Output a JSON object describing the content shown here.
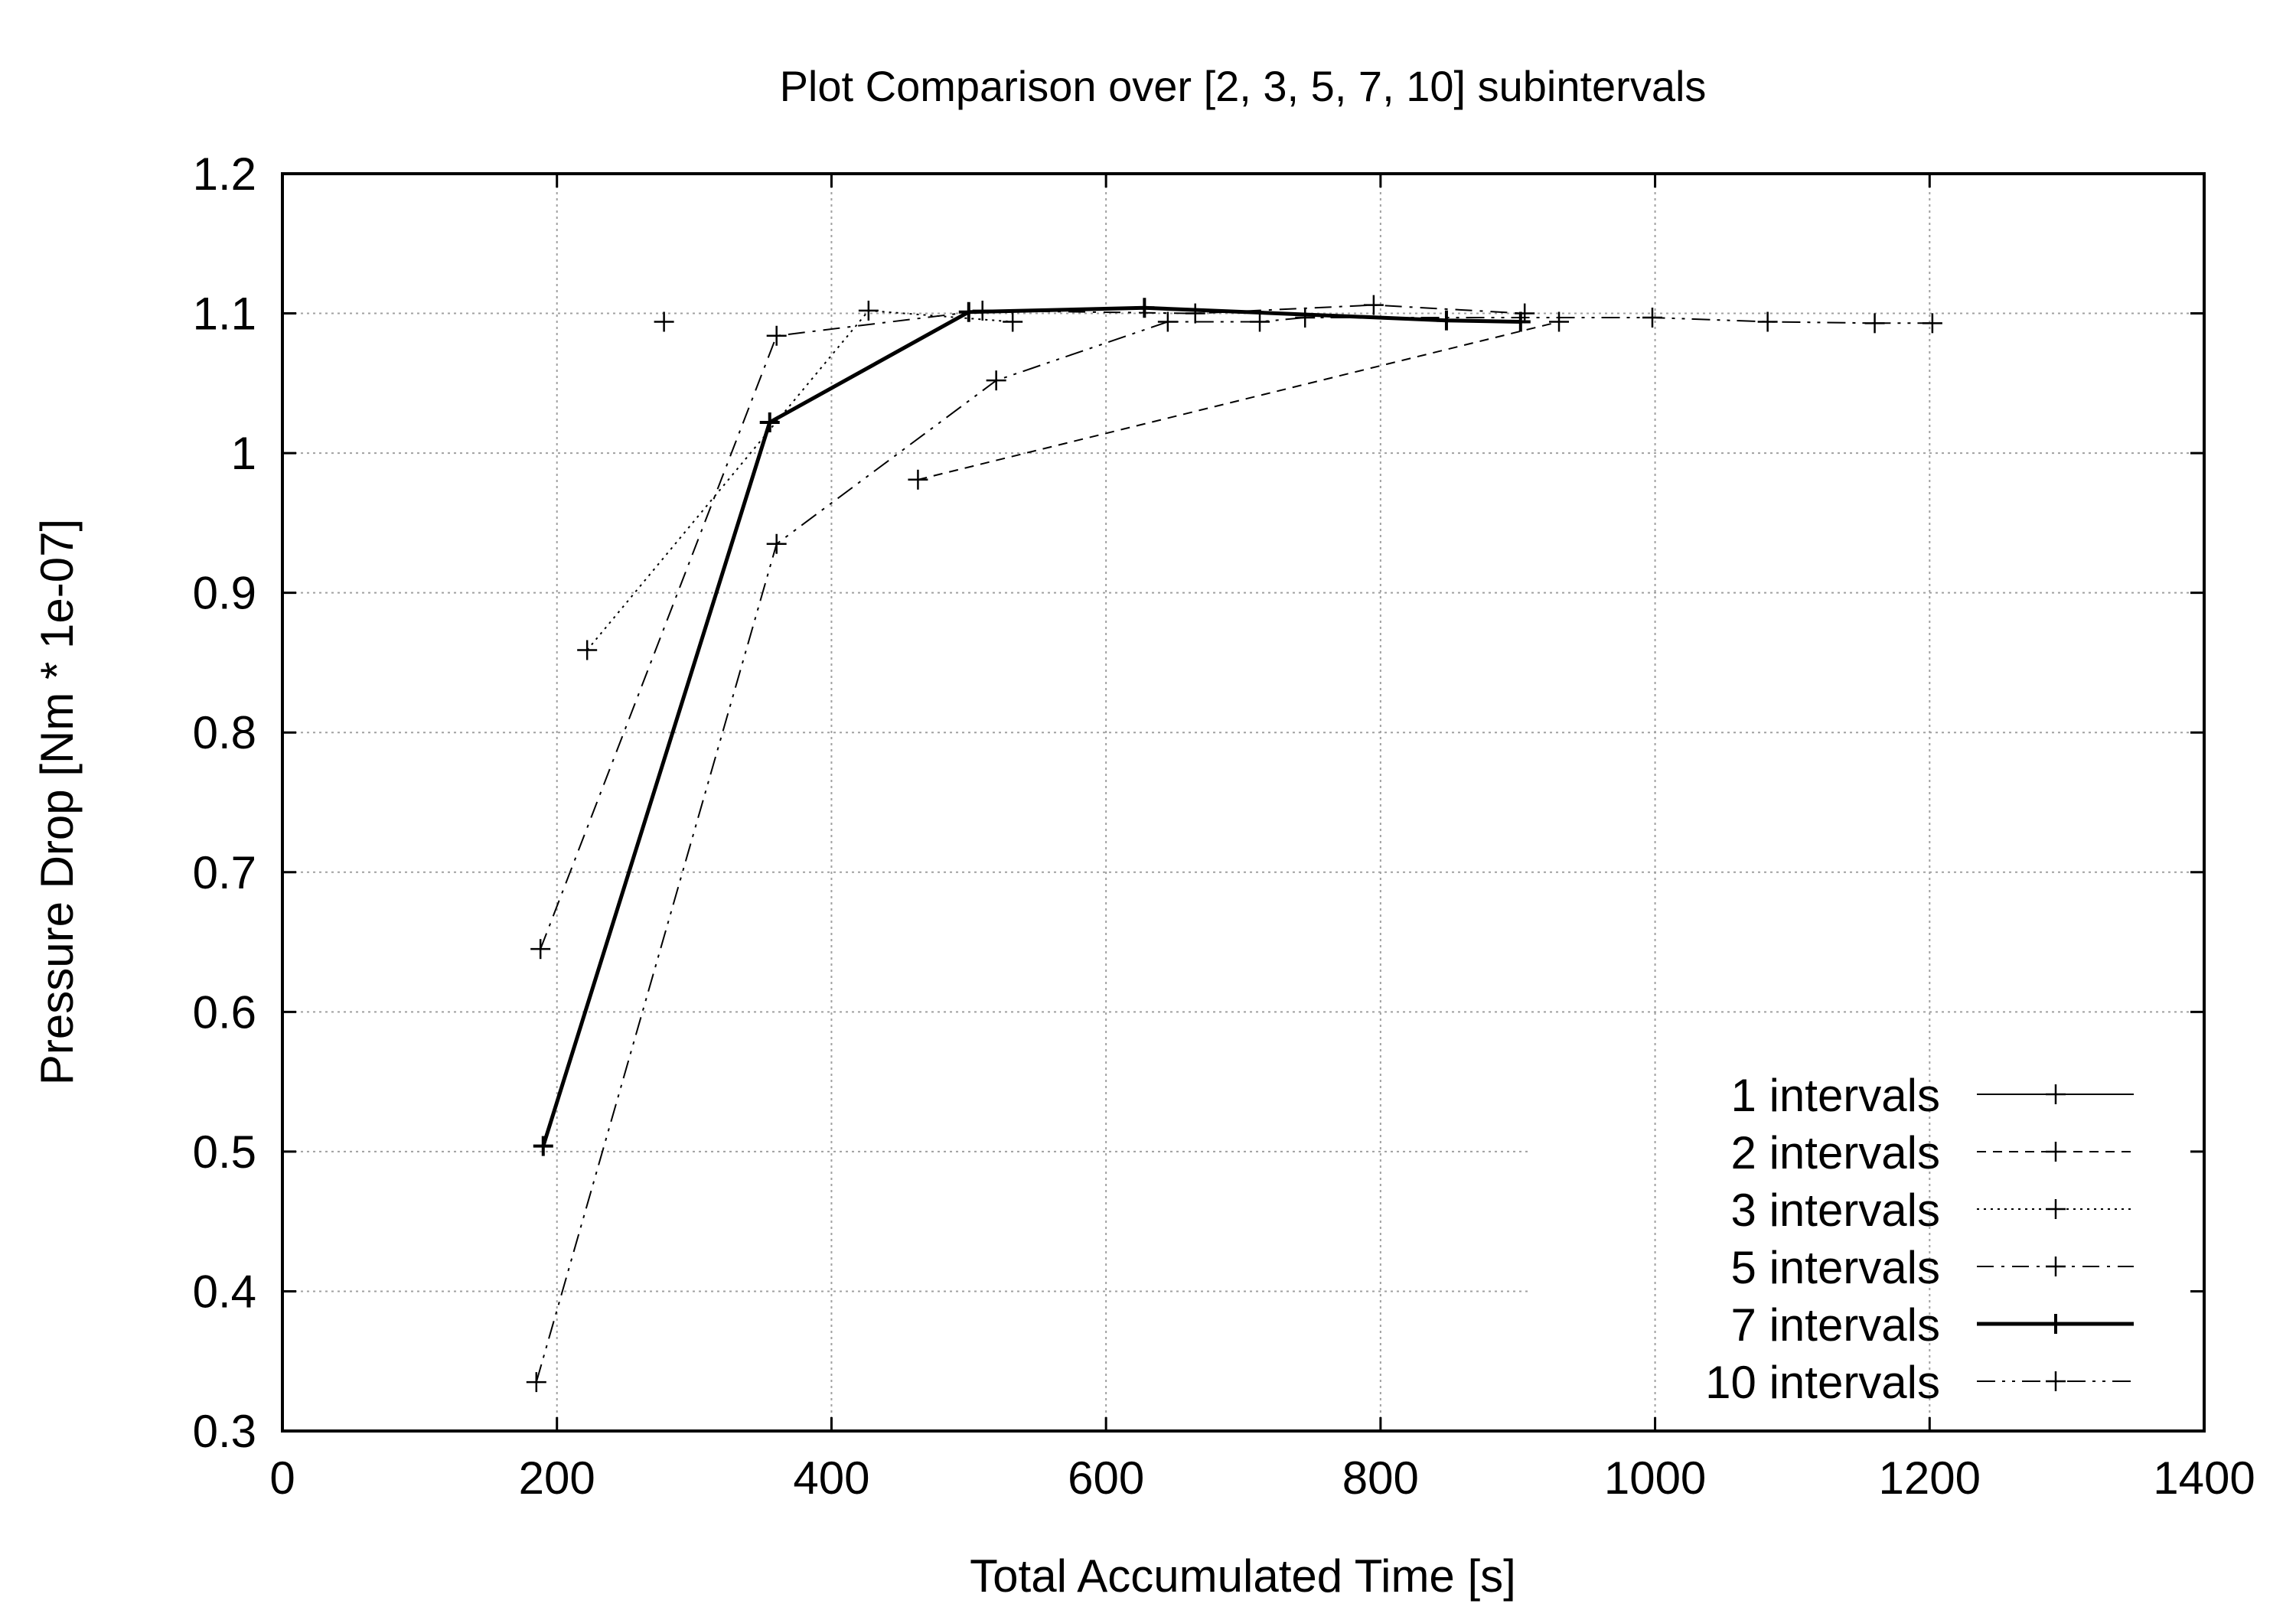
{
  "chart_data": {
    "type": "line",
    "title": "Plot Comparison over [2, 3, 5, 7, 10] subintervals",
    "xlabel": "Total Accumulated Time [s]",
    "ylabel": "Pressure Drop  [Nm * 1e-07]",
    "xlim": [
      0,
      1400
    ],
    "ylim": [
      0.3,
      1.2
    ],
    "xticks": [
      0,
      200,
      400,
      600,
      800,
      1000,
      1200,
      1400
    ],
    "yticks": [
      0.3,
      0.4,
      0.5,
      0.6,
      0.7,
      0.8,
      0.9,
      1,
      1.1,
      1.2
    ],
    "xtick_labels": [
      "0",
      "200",
      "400",
      "600",
      "800",
      "1000",
      "1200",
      "1400"
    ],
    "ytick_labels": [
      "0.3",
      "0.4",
      "0.5",
      "0.6",
      "0.7",
      "0.8",
      "0.9",
      "1",
      "1.1",
      "1.2"
    ],
    "grid": true,
    "legend_position": "bottom-right",
    "series": [
      {
        "name": "1 intervals",
        "dash": "solid",
        "width": 2,
        "x": [
          278
        ],
        "y": [
          1.094
        ]
      },
      {
        "name": "2 intervals",
        "dash": "short",
        "width": 2,
        "x": [
          463,
          930
        ],
        "y": [
          0.981,
          1.094
        ]
      },
      {
        "name": "3 intervals",
        "dash": "dot",
        "width": 2,
        "x": [
          222,
          427,
          532
        ],
        "y": [
          0.859,
          1.102,
          1.094
        ]
      },
      {
        "name": "5 intervals",
        "dash": "dashdot",
        "width": 2,
        "x": [
          188,
          360,
          510,
          665,
          795,
          905
        ],
        "y": [
          0.645,
          1.084,
          1.102,
          1.1,
          1.106,
          1.1
        ]
      },
      {
        "name": "7 intervals",
        "dash": "solid",
        "width": 5,
        "x": [
          190,
          355,
          500,
          628,
          848,
          902
        ],
        "y": [
          0.504,
          1.022,
          1.101,
          1.104,
          1.095,
          1.094
        ]
      },
      {
        "name": "10 intervals",
        "dash": "dashdotdot",
        "width": 2,
        "x": [
          185,
          360,
          520,
          645,
          712,
          745,
          998,
          1082,
          1160,
          1202
        ],
        "y": [
          0.335,
          0.935,
          1.052,
          1.094,
          1.094,
          1.097,
          1.097,
          1.094,
          1.093,
          1.093
        ]
      }
    ]
  }
}
